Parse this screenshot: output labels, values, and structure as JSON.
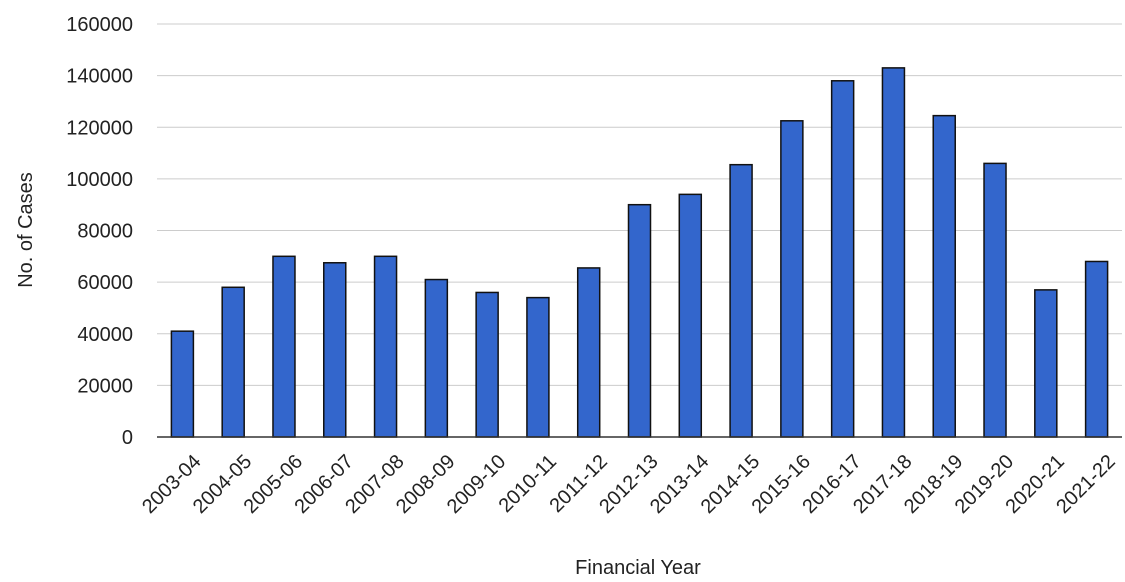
{
  "chart_data": {
    "type": "bar",
    "xlabel": "Financial Year",
    "ylabel": "No. of Cases",
    "categories": [
      "2003-04",
      "2004-05",
      "2005-06",
      "2006-07",
      "2007-08",
      "2008-09",
      "2009-10",
      "2010-11",
      "2011-12",
      "2012-13",
      "2013-14",
      "2014-15",
      "2015-16",
      "2016-17",
      "2017-18",
      "2018-19",
      "2019-20",
      "2020-21",
      "2021-22"
    ],
    "values": [
      41000,
      58000,
      70000,
      67500,
      70000,
      61000,
      56000,
      54000,
      65500,
      90000,
      94000,
      105500,
      122500,
      138000,
      143000,
      124500,
      106000,
      57000,
      68000
    ],
    "ylim": [
      0,
      160000
    ],
    "yticks": [
      0,
      20000,
      40000,
      60000,
      80000,
      100000,
      120000,
      140000,
      160000
    ],
    "grid": true,
    "legend": "none",
    "colors": {
      "bar": "#3366cc",
      "bar_edge": "#111111",
      "grid": "#cccccc",
      "axis": "#333333"
    }
  }
}
